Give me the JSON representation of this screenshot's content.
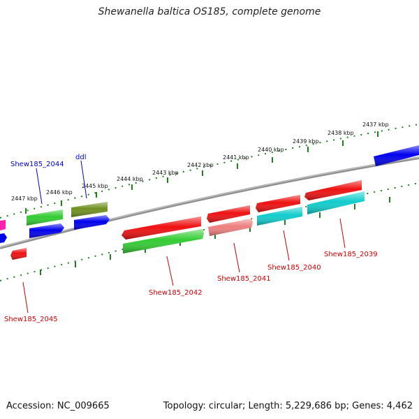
{
  "title": "Shewanella baltica OS185, complete genome",
  "footer": {
    "accession": "Accession: NC_009665",
    "summary": "Topology: circular; Length: 5,229,686 bp; Genes: 4,462"
  },
  "colors": {
    "backbone": "#808080",
    "ruler": "#1f7f1f",
    "label_top": "#0000cc",
    "label_bottom": "#cc0000",
    "red": "#ee1111",
    "green": "#33cc33",
    "olive": "#6f8f1f",
    "blue": "#0000ee",
    "cyan": "#11cccc",
    "pink": "#ee7f7f",
    "magenta": "#ff22aa"
  },
  "ruler_labels": [
    "2437 kbp",
    "2438 kbp",
    "2439 kbp",
    "2440 kbp",
    "2441 kbp",
    "2442 kbp",
    "2443 kbp",
    "2444 kbp",
    "2445 kbp",
    "2446 kbp",
    "2447 kbp"
  ],
  "gene_labels": {
    "shew185_2044": "Shew185_2044",
    "ddl": "ddl",
    "shew185_2039": "Shew185_2039",
    "shew185_2040": "Shew185_2040",
    "shew185_2041": "Shew185_2041",
    "shew185_2042": "Shew185_2042",
    "shew185_2045": "Shew185_2045"
  }
}
